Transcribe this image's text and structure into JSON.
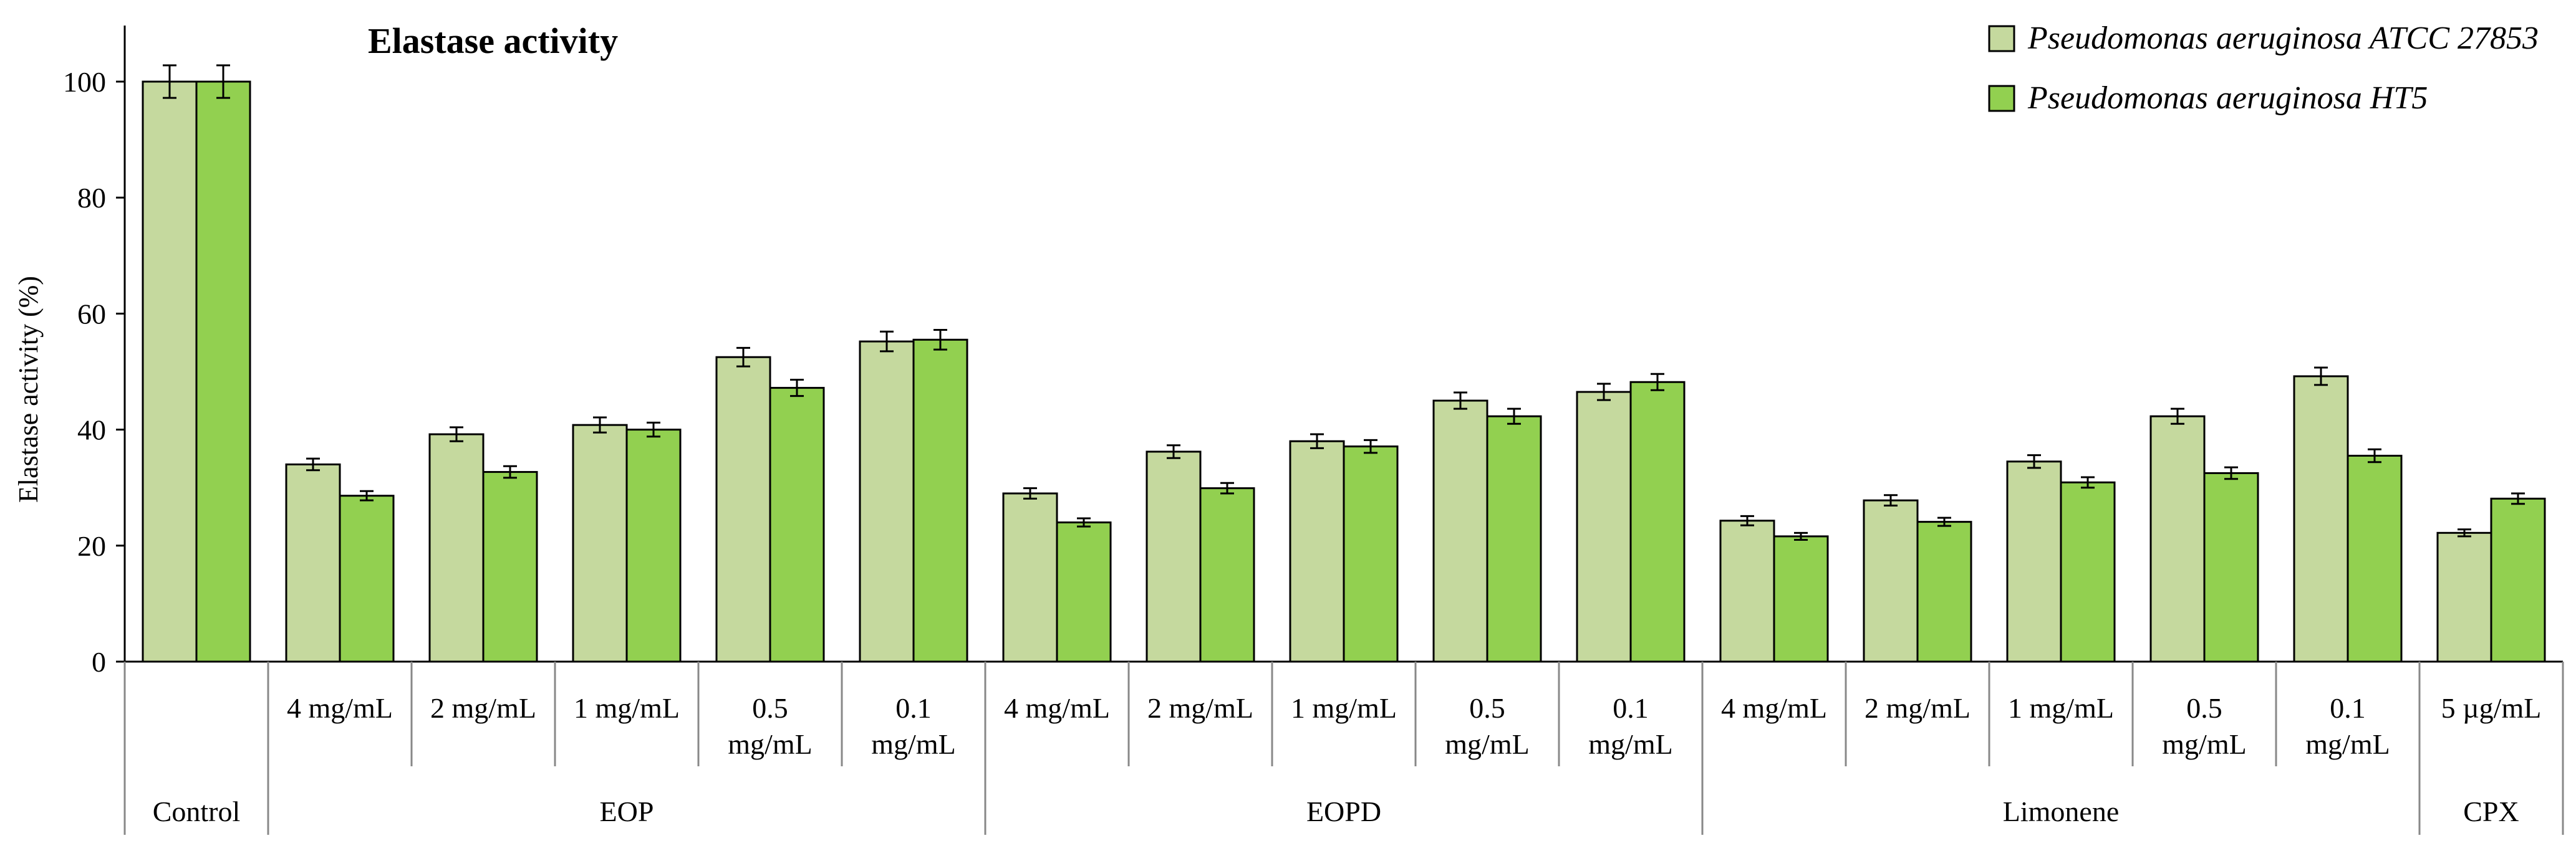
{
  "chart_data": {
    "type": "bar",
    "title": "Elastase activity",
    "ylabel": "Elastase activity (%)",
    "xlabel": "",
    "ylim": [
      0,
      100
    ],
    "yticks": [
      0,
      20,
      40,
      60,
      80,
      100
    ],
    "grid": false,
    "legend_position": "top-right",
    "categories": [
      {
        "label": "",
        "group": "Control"
      },
      {
        "label": "4 mg/mL",
        "group": "EOP"
      },
      {
        "label": "2 mg/mL",
        "group": "EOP"
      },
      {
        "label": "1 mg/mL",
        "group": "EOP"
      },
      {
        "label": "0.5 mg/mL",
        "group": "EOP"
      },
      {
        "label": "0.1 mg/mL",
        "group": "EOP"
      },
      {
        "label": "4 mg/mL",
        "group": "EOPD"
      },
      {
        "label": "2 mg/mL",
        "group": "EOPD"
      },
      {
        "label": "1 mg/mL",
        "group": "EOPD"
      },
      {
        "label": "0.5 mg/mL",
        "group": "EOPD"
      },
      {
        "label": "0.1 mg/mL",
        "group": "EOPD"
      },
      {
        "label": "4 mg/mL",
        "group": "Limonene"
      },
      {
        "label": "2 mg/mL",
        "group": "Limonene"
      },
      {
        "label": "1 mg/mL",
        "group": "Limonene"
      },
      {
        "label": "0.5 mg/mL",
        "group": "Limonene"
      },
      {
        "label": "0.1 mg/mL",
        "group": "Limonene"
      },
      {
        "label": "5 µg/mL",
        "group": "CPX"
      }
    ],
    "groups": [
      "Control",
      "EOP",
      "EOPD",
      "Limonene",
      "CPX"
    ],
    "series": [
      {
        "name": "Pseudomonas aeruginosa ATCC 27853",
        "color": "#c5d99e",
        "values": [
          100,
          34.0,
          39.2,
          40.8,
          52.5,
          55.2,
          29.0,
          36.2,
          38.0,
          45.0,
          46.5,
          24.3,
          27.8,
          34.5,
          42.3,
          49.2,
          22.2
        ],
        "errors": [
          2.8,
          1.0,
          1.2,
          1.3,
          1.6,
          1.7,
          0.9,
          1.1,
          1.2,
          1.4,
          1.4,
          0.8,
          0.9,
          1.1,
          1.3,
          1.5,
          0.6
        ]
      },
      {
        "name": "Pseudomonas aeruginosa HT5",
        "color": "#92d050",
        "values": [
          100,
          28.6,
          32.7,
          40.0,
          47.2,
          55.5,
          24.0,
          29.9,
          37.1,
          42.3,
          48.2,
          21.6,
          24.1,
          30.9,
          32.5,
          35.5,
          28.1
        ],
        "errors": [
          2.8,
          0.8,
          1.0,
          1.2,
          1.4,
          1.7,
          0.7,
          0.9,
          1.1,
          1.3,
          1.4,
          0.6,
          0.7,
          0.9,
          1.0,
          1.1,
          0.9
        ]
      }
    ]
  }
}
